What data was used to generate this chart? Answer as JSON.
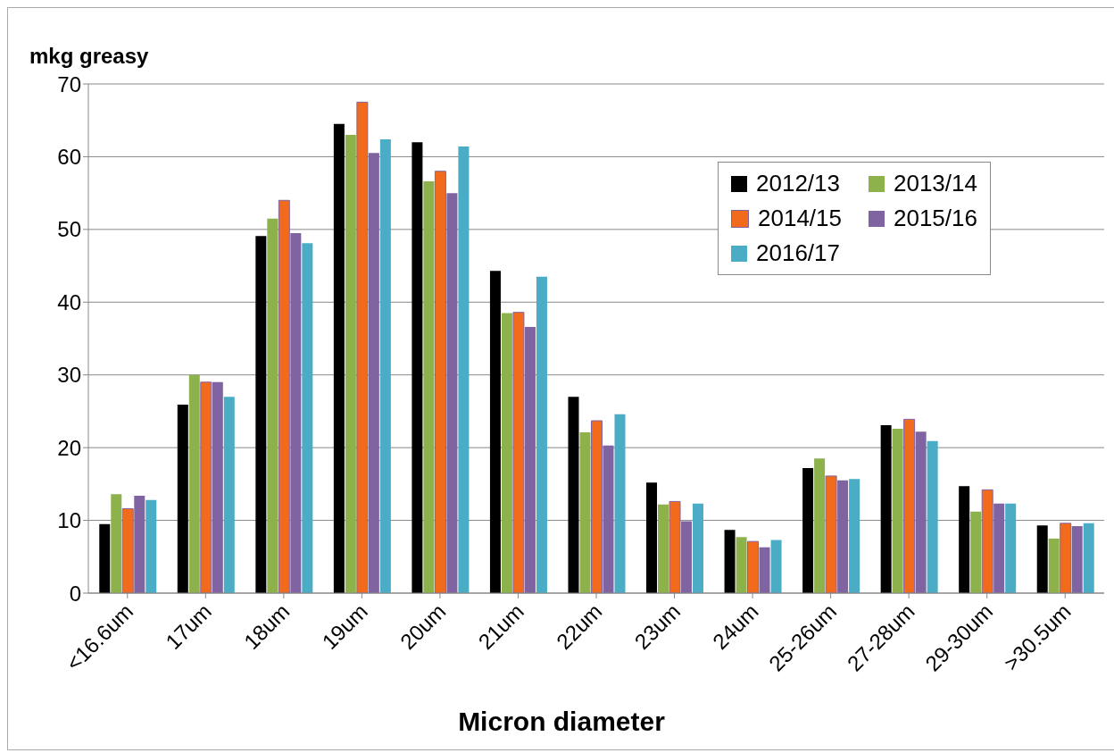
{
  "chart_data": {
    "type": "bar",
    "xlabel": "Micron diameter",
    "ylabel": "mkg greasy",
    "categories": [
      "<16.6um",
      "17um",
      "18um",
      "19um",
      "20um",
      "21um",
      "22um",
      "23um",
      "24um",
      "25-26um",
      "27-28um",
      "29-30um",
      ">30.5um"
    ],
    "series": [
      {
        "name": "2012/13",
        "color": "#000000",
        "values": [
          9.5,
          25.9,
          49.1,
          64.5,
          62,
          44.3,
          27,
          15.2,
          8.7,
          17.2,
          23.1,
          14.7,
          9.3
        ]
      },
      {
        "name": "2013/14",
        "color": "#8db24c",
        "values": [
          13.6,
          30,
          51.5,
          63,
          56.6,
          38.5,
          22.1,
          12.2,
          7.7,
          18.5,
          22.6,
          11.2,
          7.5
        ]
      },
      {
        "name": "2014/15",
        "color": "#f26b1d",
        "values": [
          11.6,
          29,
          54,
          67.5,
          58,
          38.6,
          23.7,
          12.6,
          7.1,
          16.1,
          23.9,
          14.2,
          9.6
        ]
      },
      {
        "name": "2015/16",
        "color": "#8064a2",
        "values": [
          13.4,
          29,
          49.5,
          60.5,
          55,
          36.6,
          20.3,
          9.9,
          6.3,
          15.5,
          22.2,
          12.3,
          9.2
        ]
      },
      {
        "name": "2016/17",
        "color": "#4bacc6",
        "values": [
          12.8,
          27,
          48.1,
          62.4,
          61.4,
          43.5,
          24.6,
          12.3,
          7.3,
          15.7,
          20.9,
          12.3,
          9.6
        ]
      }
    ],
    "ylim": [
      0,
      70
    ],
    "yticks": [
      0,
      10,
      20,
      30,
      40,
      50,
      60,
      70
    ],
    "grid": "y",
    "legend": "top right"
  }
}
